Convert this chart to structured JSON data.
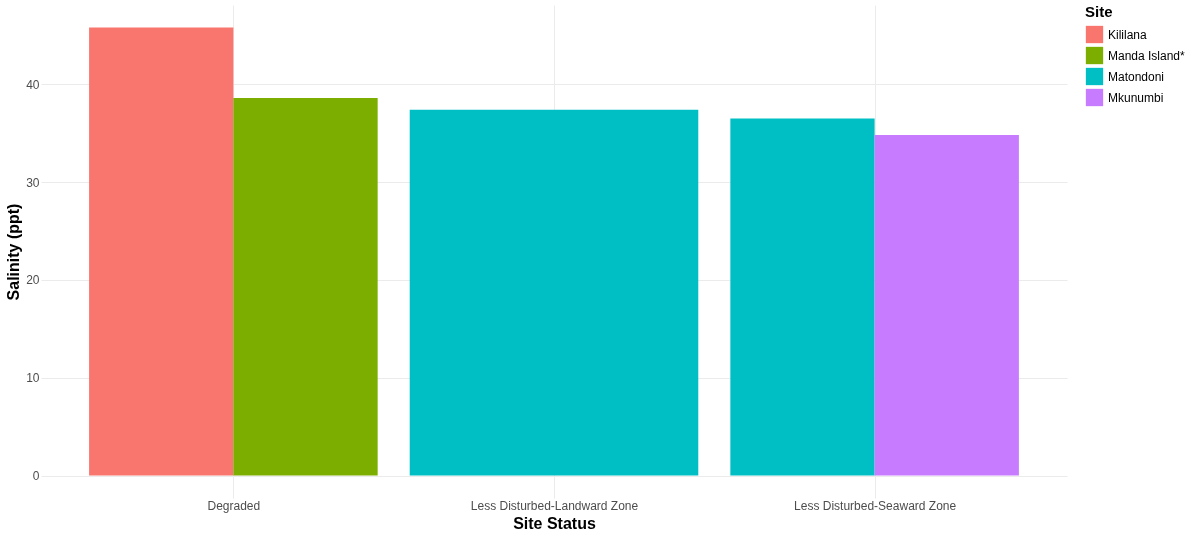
{
  "chart_data": {
    "type": "bar",
    "xlabel": "Site Status",
    "ylabel": "Salinity (ppt)",
    "legend_title": "Site",
    "categories": [
      "Degraded",
      "Less Disturbed-Landward Zone",
      "Less Disturbed-Seaward Zone"
    ],
    "series": [
      {
        "name": "Kililana",
        "color": "#f8766d",
        "values": [
          45.8,
          null,
          null
        ]
      },
      {
        "name": "Manda Island*",
        "color": "#7cae00",
        "values": [
          38.6,
          null,
          null
        ]
      },
      {
        "name": "Matondoni",
        "color": "#00bfc4",
        "values": [
          null,
          37.4,
          36.5
        ]
      },
      {
        "name": "Mkunumbi",
        "color": "#c77cff",
        "values": [
          null,
          null,
          34.8
        ]
      }
    ],
    "ylim": [
      -2.3,
      48.1
    ],
    "yticks": [
      0,
      10,
      20,
      30,
      40
    ],
    "grid": true,
    "legend": "right"
  }
}
